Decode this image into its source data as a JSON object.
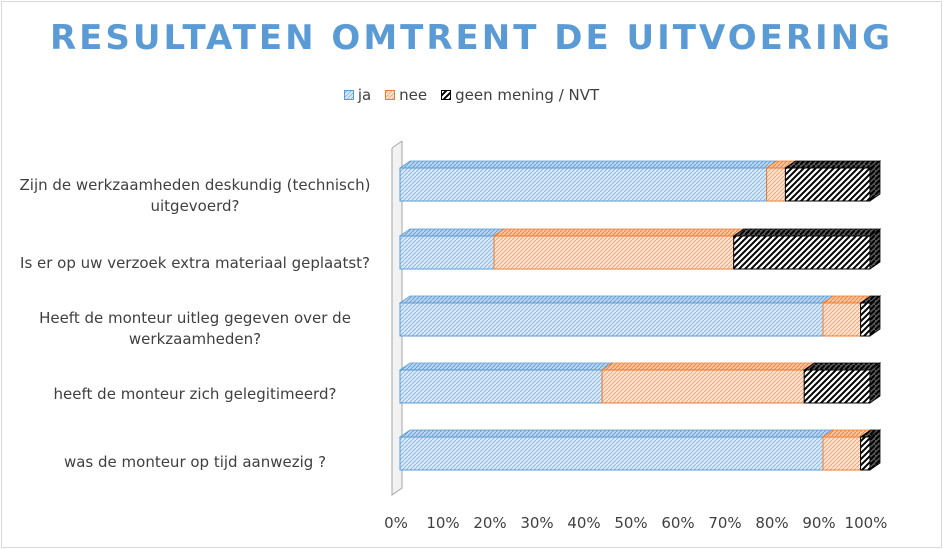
{
  "chart_data": {
    "type": "bar",
    "orientation": "horizontal",
    "stacked": "100%",
    "three_d": true,
    "title": "RESULTATEN OMTRENT DE UITVOERING",
    "categories": [
      "Zijn de werkzaamheden deskundig (technisch) uitgevoerd?",
      "Is er op uw verzoek extra materiaal geplaatst?",
      "Heeft de monteur uitleg gegeven over de werkzaamheden?",
      "heeft de monteur zich gelegitimeerd?",
      "was de monteur op tijd aanwezig ?"
    ],
    "series": [
      {
        "name": "ja",
        "values": [
          78,
          20,
          90,
          43,
          90
        ]
      },
      {
        "name": "nee",
        "values": [
          4,
          51,
          8,
          43,
          8
        ]
      },
      {
        "name": "geen mening / NVT",
        "values": [
          18,
          29,
          2,
          14,
          2
        ]
      }
    ],
    "xlim": [
      0,
      100
    ],
    "x_ticks": [
      "0%",
      "10%",
      "20%",
      "30%",
      "40%",
      "50%",
      "60%",
      "70%",
      "80%",
      "90%",
      "100%"
    ],
    "legend_position": "top",
    "gridlines": false
  },
  "colors": {
    "title": "#5b9bd5",
    "ja_stroke": "#5b9bd5",
    "ja_fill": "#dbe9f6",
    "nee_stroke": "#ed7d31",
    "nee_fill": "#fbe3d3",
    "nvt_stroke": "#000000",
    "nvt_fill": "#ffffff"
  }
}
